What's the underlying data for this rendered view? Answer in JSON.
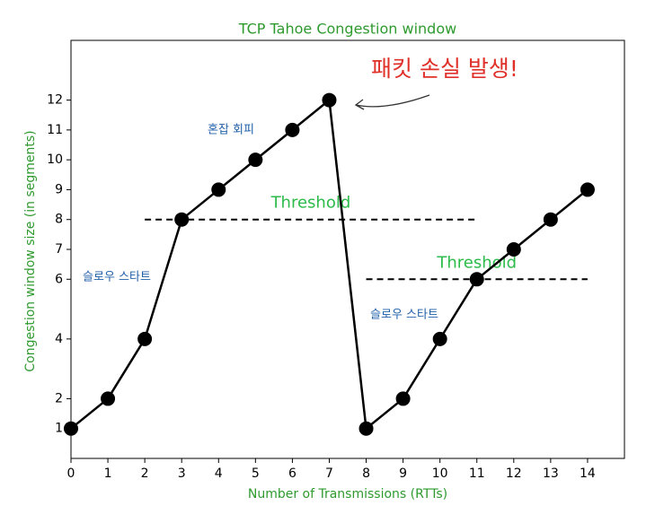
{
  "chart_data": {
    "type": "line",
    "title": "TCP Tahoe Congestion window",
    "xlabel": "Number of Transmissions (RTTs)",
    "ylabel": "Congestion window size (in segments)",
    "x": [
      0,
      1,
      2,
      3,
      4,
      5,
      6,
      7,
      8,
      9,
      10,
      11,
      12,
      13,
      14
    ],
    "values": [
      1,
      2,
      4,
      8,
      9,
      10,
      11,
      12,
      1,
      2,
      4,
      6,
      7,
      8,
      9
    ],
    "color": "#000000",
    "xlim": [
      0,
      15
    ],
    "xticks": [
      0,
      1,
      2,
      3,
      4,
      5,
      6,
      7,
      8,
      9,
      10,
      11,
      12,
      13,
      14
    ],
    "ylim": [
      0,
      14
    ],
    "yticks": [
      1,
      2,
      4,
      6,
      7,
      8,
      9,
      10,
      11,
      12
    ],
    "grid": false,
    "thresholds": [
      {
        "label": "Threshold",
        "value": 8,
        "xrange": [
          2,
          11
        ]
      },
      {
        "label": "Threshold",
        "value": 6,
        "xrange": [
          8,
          14
        ]
      }
    ],
    "annotations": [
      "패킷 손실 발생!",
      "혼잡 회피",
      "슬로우 스타트",
      "슬로우 스타트"
    ]
  }
}
